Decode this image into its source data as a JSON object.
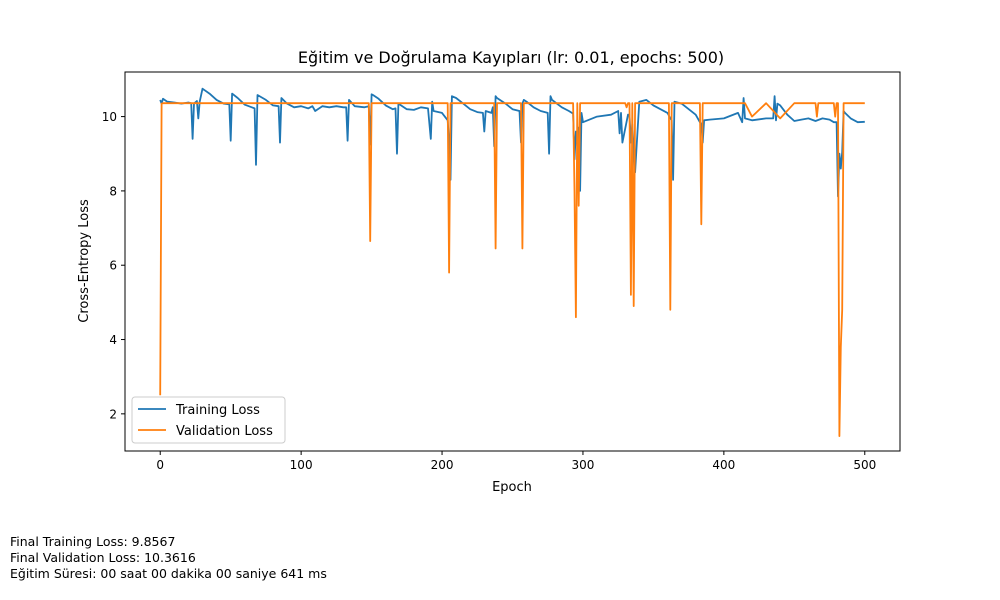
{
  "chart_data": {
    "type": "line",
    "title": "Eğitim ve Doğrulama Kayıpları (lr: 0.01, epochs: 500)",
    "xlabel": "Epoch",
    "ylabel": "Cross-Entropy Loss",
    "xlim": [
      -25,
      525
    ],
    "ylim": [
      1.0,
      11.2
    ],
    "xticks": [
      0,
      100,
      200,
      300,
      400,
      500
    ],
    "yticks": [
      2,
      4,
      6,
      8,
      10
    ],
    "grid": false,
    "legend_position": "lower-left",
    "series": [
      {
        "name": "Training Loss",
        "color": "#1f77b4",
        "x": [
          0,
          1,
          2,
          5,
          10,
          15,
          20,
          22,
          23,
          24,
          26,
          27,
          28,
          30,
          35,
          40,
          45,
          49,
          50,
          51,
          55,
          60,
          65,
          67,
          68,
          69,
          75,
          80,
          84,
          85,
          86,
          90,
          95,
          100,
          105,
          108,
          110,
          115,
          120,
          125,
          130,
          132,
          133,
          134,
          138,
          145,
          148,
          149,
          150,
          151,
          155,
          160,
          165,
          167,
          168,
          169,
          175,
          180,
          185,
          190,
          192,
          193,
          194,
          200,
          204,
          205,
          206,
          207,
          210,
          215,
          220,
          225,
          229,
          230,
          231,
          235,
          236,
          237,
          238,
          239,
          245,
          250,
          255,
          256,
          257,
          258,
          260,
          265,
          270,
          275,
          276,
          277,
          278,
          285,
          290,
          293,
          294,
          295,
          296,
          297,
          298,
          299,
          300,
          310,
          320,
          325,
          326,
          327,
          328,
          332,
          333,
          334,
          335,
          336,
          337,
          338,
          340,
          345,
          350,
          360,
          362,
          363,
          364,
          365,
          370,
          380,
          383,
          384,
          385,
          386,
          390,
          400,
          410,
          413,
          414,
          415,
          420,
          430,
          435,
          436,
          437,
          438,
          440,
          445,
          450,
          455,
          460,
          465,
          470,
          475,
          478,
          480,
          481,
          482,
          483,
          484,
          485,
          486,
          490,
          495,
          500
        ],
        "values": [
          10.45,
          10.35,
          10.48,
          10.4,
          10.38,
          10.35,
          10.38,
          10.36,
          9.4,
          10.35,
          10.42,
          9.95,
          10.4,
          10.75,
          10.62,
          10.45,
          10.35,
          10.33,
          9.35,
          10.62,
          10.5,
          10.32,
          10.25,
          10.22,
          8.7,
          10.58,
          10.45,
          10.3,
          10.28,
          9.3,
          10.5,
          10.35,
          10.25,
          10.28,
          10.22,
          10.28,
          10.15,
          10.28,
          10.25,
          10.28,
          10.25,
          10.25,
          9.35,
          10.45,
          10.28,
          10.25,
          10.28,
          9.25,
          10.6,
          10.58,
          10.48,
          10.3,
          10.2,
          10.22,
          9.0,
          10.35,
          10.2,
          10.18,
          10.25,
          10.22,
          9.4,
          10.4,
          10.15,
          10.1,
          9.9,
          9.3,
          8.3,
          10.55,
          10.5,
          10.35,
          10.2,
          10.12,
          10.1,
          9.6,
          10.15,
          10.1,
          10.25,
          9.2,
          10.55,
          10.5,
          10.35,
          10.2,
          10.15,
          9.3,
          10.35,
          10.45,
          10.4,
          10.25,
          10.15,
          10.1,
          9.0,
          10.55,
          10.45,
          10.25,
          10.15,
          10.08,
          8.85,
          9.6,
          9.2,
          9.7,
          8.0,
          10.1,
          9.85,
          10.0,
          10.05,
          10.15,
          9.55,
          10.1,
          9.3,
          10.05,
          10.05,
          9.3,
          9.8,
          9.1,
          8.5,
          9.15,
          10.4,
          10.45,
          10.3,
          10.1,
          9.95,
          9.9,
          8.3,
          10.4,
          10.35,
          10.05,
          9.85,
          9.8,
          9.3,
          9.9,
          9.92,
          9.95,
          10.1,
          9.85,
          10.5,
          9.95,
          9.9,
          9.95,
          9.95,
          10.55,
          9.9,
          10.35,
          10.3,
          10.05,
          9.88,
          9.92,
          9.95,
          9.88,
          9.95,
          9.92,
          9.85,
          9.85,
          7.85,
          9.0,
          8.6,
          9.05,
          10.15,
          10.1,
          9.95,
          9.85,
          9.86
        ]
      },
      {
        "name": "Validation Loss",
        "color": "#ff7f0e",
        "x": [
          0,
          1,
          2,
          10,
          50,
          100,
          148,
          149,
          150,
          151,
          204,
          205,
          206,
          207,
          237,
          238,
          239,
          256,
          257,
          258,
          293,
          294,
          295,
          296,
          297,
          298,
          299,
          300,
          330,
          331,
          332,
          333,
          334,
          335,
          336,
          337,
          338,
          361,
          362,
          363,
          364,
          365,
          383,
          384,
          385,
          386,
          415,
          420,
          430,
          440,
          450,
          455,
          460,
          465,
          466,
          467,
          470,
          478,
          479,
          480,
          481,
          482,
          483,
          484,
          485,
          486,
          487,
          490,
          500
        ],
        "values": [
          2.5,
          10.35,
          10.36,
          10.36,
          10.36,
          10.36,
          10.36,
          6.65,
          10.36,
          10.36,
          10.36,
          5.8,
          10.36,
          10.36,
          10.36,
          6.45,
          10.36,
          10.36,
          6.45,
          10.36,
          10.36,
          8.0,
          4.6,
          10.36,
          7.6,
          10.36,
          10.36,
          10.36,
          10.36,
          10.25,
          10.36,
          10.36,
          5.2,
          10.36,
          4.9,
          10.36,
          10.36,
          10.36,
          4.8,
          10.36,
          10.36,
          10.36,
          10.36,
          7.1,
          10.36,
          10.36,
          10.36,
          10.0,
          10.36,
          9.95,
          10.36,
          10.36,
          10.36,
          10.36,
          10.0,
          10.36,
          10.36,
          10.36,
          10.0,
          10.36,
          10.36,
          1.4,
          3.8,
          4.8,
          10.36,
          10.36,
          10.36,
          10.36,
          10.36
        ]
      }
    ]
  },
  "footer": {
    "final_training_loss": "Final Training Loss: 9.8567",
    "final_validation_loss": "Final Validation Loss: 10.3616",
    "training_time": "Eğitim Süresi: 00 saat 00 dakika 00 saniye 641 ms"
  }
}
